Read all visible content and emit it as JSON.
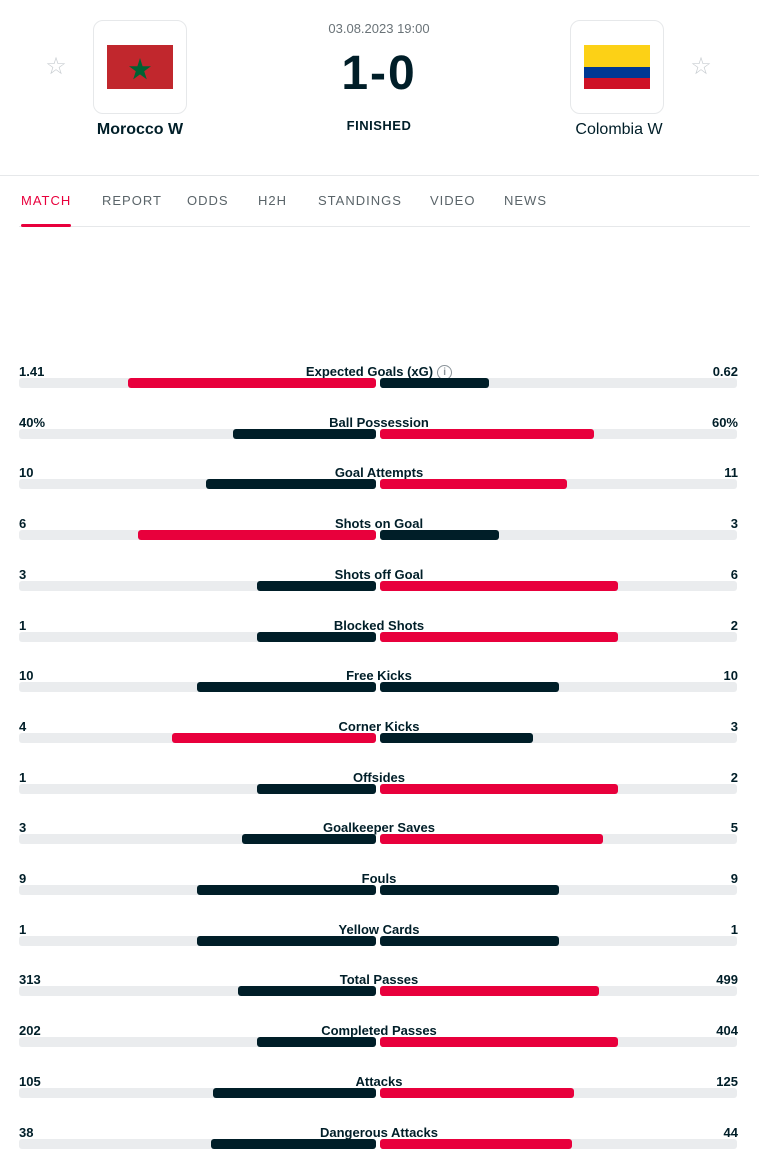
{
  "match": {
    "datetime": "03.08.2023 19:00",
    "score": "1-0",
    "status": "FINISHED",
    "home": {
      "name": "Morocco W",
      "flag": "morocco-flag",
      "star_icon": "star-outline-icon"
    },
    "away": {
      "name": "Colombia W",
      "flag": "colombia-flag",
      "star_icon": "star-outline-icon"
    }
  },
  "tabs": [
    {
      "label": "MATCH",
      "active": true
    },
    {
      "label": "REPORT",
      "active": false
    },
    {
      "label": "ODDS",
      "active": false
    },
    {
      "label": "H2H",
      "active": false
    },
    {
      "label": "STANDINGS",
      "active": false
    },
    {
      "label": "VIDEO",
      "active": false
    },
    {
      "label": "NEWS",
      "active": false
    }
  ],
  "colors": {
    "accent": "#e8003c",
    "dark": "#001e28",
    "track": "#eaecee"
  },
  "stats": [
    {
      "label": "Expected Goals (xG)",
      "home_display": "1.41",
      "away_display": "0.62",
      "home": 1.41,
      "away": 0.62,
      "info": true
    },
    {
      "label": "Ball Possession",
      "home_display": "40%",
      "away_display": "60%",
      "home": 40,
      "away": 60
    },
    {
      "label": "Goal Attempts",
      "home_display": "10",
      "away_display": "11",
      "home": 10,
      "away": 11
    },
    {
      "label": "Shots on Goal",
      "home_display": "6",
      "away_display": "3",
      "home": 6,
      "away": 3
    },
    {
      "label": "Shots off Goal",
      "home_display": "3",
      "away_display": "6",
      "home": 3,
      "away": 6
    },
    {
      "label": "Blocked Shots",
      "home_display": "1",
      "away_display": "2",
      "home": 1,
      "away": 2
    },
    {
      "label": "Free Kicks",
      "home_display": "10",
      "away_display": "10",
      "home": 10,
      "away": 10
    },
    {
      "label": "Corner Kicks",
      "home_display": "4",
      "away_display": "3",
      "home": 4,
      "away": 3
    },
    {
      "label": "Offsides",
      "home_display": "1",
      "away_display": "2",
      "home": 1,
      "away": 2
    },
    {
      "label": "Goalkeeper Saves",
      "home_display": "3",
      "away_display": "5",
      "home": 3,
      "away": 5
    },
    {
      "label": "Fouls",
      "home_display": "9",
      "away_display": "9",
      "home": 9,
      "away": 9
    },
    {
      "label": "Yellow Cards",
      "home_display": "1",
      "away_display": "1",
      "home": 1,
      "away": 1
    },
    {
      "label": "Total Passes",
      "home_display": "313",
      "away_display": "499",
      "home": 313,
      "away": 499
    },
    {
      "label": "Completed Passes",
      "home_display": "202",
      "away_display": "404",
      "home": 202,
      "away": 404
    },
    {
      "label": "Attacks",
      "home_display": "105",
      "away_display": "125",
      "home": 105,
      "away": 125
    },
    {
      "label": "Dangerous Attacks",
      "home_display": "38",
      "away_display": "44",
      "home": 38,
      "away": 44
    }
  ]
}
